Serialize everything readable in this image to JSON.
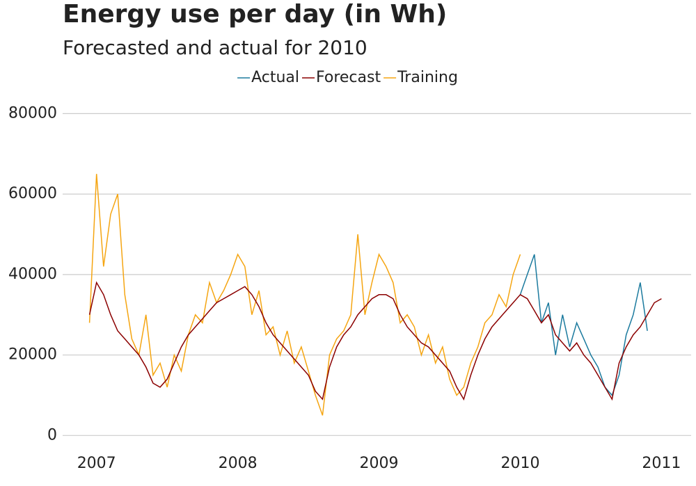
{
  "chart_data": {
    "type": "line",
    "title": "Energy use per day (in Wh)",
    "subtitle": "Forecasted and actual for 2010",
    "x": [
      2006.95,
      2007.0,
      2007.05,
      2007.1,
      2007.15,
      2007.2,
      2007.25,
      2007.3,
      2007.35,
      2007.4,
      2007.45,
      2007.5,
      2007.55,
      2007.6,
      2007.65,
      2007.7,
      2007.75,
      2007.8,
      2007.85,
      2007.9,
      2007.95,
      2008.0,
      2008.05,
      2008.1,
      2008.15,
      2008.2,
      2008.25,
      2008.3,
      2008.35,
      2008.4,
      2008.45,
      2008.5,
      2008.55,
      2008.6,
      2008.65,
      2008.7,
      2008.75,
      2008.8,
      2008.85,
      2008.9,
      2008.95,
      2009.0,
      2009.05,
      2009.1,
      2009.15,
      2009.2,
      2009.25,
      2009.3,
      2009.35,
      2009.4,
      2009.45,
      2009.5,
      2009.55,
      2009.6,
      2009.65,
      2009.7,
      2009.75,
      2009.8,
      2009.85,
      2009.9,
      2009.95,
      2010.0,
      2010.05,
      2010.1,
      2010.15,
      2010.2,
      2010.25,
      2010.3,
      2010.35,
      2010.4,
      2010.45,
      2010.5,
      2010.55,
      2010.6,
      2010.65,
      2010.7,
      2010.75,
      2010.8,
      2010.85,
      2010.9,
      2010.95,
      2011.0
    ],
    "series": [
      {
        "name": "Actual",
        "color": "#1b7a9e",
        "values": [
          null,
          null,
          null,
          null,
          null,
          null,
          null,
          null,
          null,
          null,
          null,
          null,
          null,
          null,
          null,
          null,
          null,
          null,
          null,
          null,
          null,
          null,
          null,
          null,
          null,
          null,
          null,
          null,
          null,
          null,
          null,
          null,
          null,
          null,
          null,
          null,
          null,
          null,
          null,
          null,
          null,
          null,
          null,
          null,
          null,
          null,
          null,
          null,
          null,
          null,
          null,
          null,
          null,
          null,
          null,
          null,
          null,
          null,
          null,
          null,
          null,
          35000,
          40000,
          45000,
          28000,
          33000,
          20000,
          30000,
          22000,
          28000,
          24000,
          20000,
          17000,
          12000,
          10000,
          15000,
          25000,
          30000,
          38000,
          26000,
          null,
          null
        ]
      },
      {
        "name": "Forecast",
        "color": "#8b0000",
        "values": [
          30000,
          38000,
          35000,
          30000,
          26000,
          24000,
          22000,
          20000,
          17000,
          13000,
          12000,
          14000,
          18000,
          22000,
          25000,
          27000,
          29000,
          31000,
          33000,
          34000,
          35000,
          36000,
          37000,
          35000,
          32000,
          28000,
          25000,
          23000,
          21000,
          19000,
          17000,
          15000,
          11000,
          9000,
          17000,
          22000,
          25000,
          27000,
          30000,
          32000,
          34000,
          35000,
          35000,
          34000,
          30000,
          27000,
          25000,
          23000,
          22000,
          20000,
          18000,
          16000,
          12000,
          9000,
          15000,
          20000,
          24000,
          27000,
          29000,
          31000,
          33000,
          35000,
          34000,
          31000,
          28000,
          30000,
          25000,
          23000,
          21000,
          23000,
          20000,
          18000,
          15000,
          12000,
          9000,
          18000,
          22000,
          25000,
          27000,
          30000,
          33000,
          34000
        ]
      },
      {
        "name": "Training",
        "color": "#f5a511",
        "values": [
          28000,
          65000,
          42000,
          55000,
          60000,
          35000,
          24000,
          20000,
          30000,
          15000,
          18000,
          12000,
          20000,
          16000,
          25000,
          30000,
          28000,
          38000,
          33000,
          36000,
          40000,
          45000,
          42000,
          30000,
          36000,
          25000,
          27000,
          20000,
          26000,
          18000,
          22000,
          16000,
          10000,
          5000,
          20000,
          24000,
          26000,
          30000,
          50000,
          30000,
          38000,
          45000,
          42000,
          38000,
          28000,
          30000,
          27000,
          20000,
          25000,
          18000,
          22000,
          14000,
          10000,
          12000,
          18000,
          22000,
          28000,
          30000,
          35000,
          32000,
          40000,
          45000,
          null,
          null,
          null,
          null,
          null,
          null,
          null,
          null,
          null,
          null,
          null,
          null,
          null,
          null,
          null,
          null,
          null,
          null,
          null,
          null
        ]
      }
    ],
    "xlim": [
      2006.76,
      2011.21
    ],
    "xticks": [
      2007,
      2008,
      2009,
      2010,
      2011
    ],
    "ylim": [
      -3400,
      83000
    ],
    "yticks": [
      0,
      20000,
      40000,
      60000,
      80000
    ],
    "grid": true,
    "legend": "top"
  }
}
